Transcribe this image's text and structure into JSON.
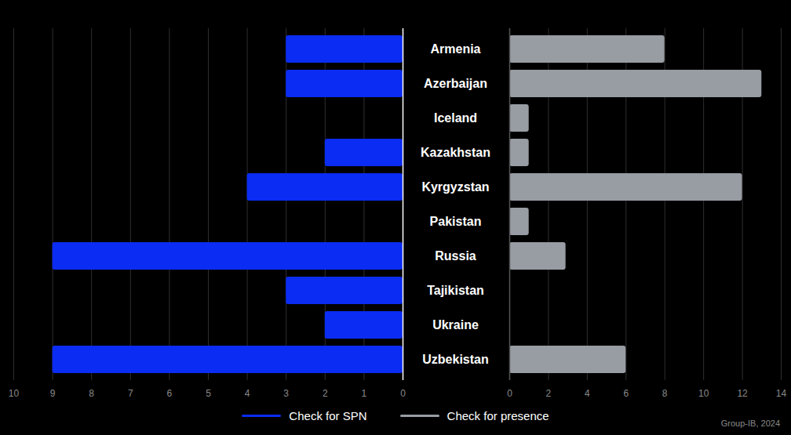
{
  "chart_data": [
    {
      "type": "bar",
      "orientation": "horizontal",
      "categories": [
        "Armenia",
        "Azerbaijan",
        "Iceland",
        "Kazakhstan",
        "Kyrgyzstan",
        "Pakistan",
        "Russia",
        "Tajikistan",
        "Ukraine",
        "Uzbekistan"
      ],
      "series": [
        {
          "name": "Check for SPN",
          "color": "#0b2cf2",
          "values": [
            3,
            3,
            0,
            2,
            4,
            0,
            9,
            3,
            2,
            9
          ]
        }
      ],
      "xlim": [
        10,
        0
      ],
      "xticks": [
        0,
        1,
        2,
        3,
        4,
        5,
        6,
        7,
        8,
        9,
        10
      ],
      "grid": true,
      "legend": "bottom"
    },
    {
      "type": "bar",
      "orientation": "horizontal",
      "categories": [
        "Armenia",
        "Azerbaijan",
        "Iceland",
        "Kazakhstan",
        "Kyrgyzstan",
        "Pakistan",
        "Russia",
        "Tajikistan",
        "Ukraine",
        "Uzbekistan"
      ],
      "series": [
        {
          "name": "Check for presence",
          "color": "#989ca3",
          "values": [
            8,
            13,
            1,
            1,
            12,
            1,
            2.9,
            0,
            0,
            6
          ]
        }
      ],
      "xlim": [
        0,
        14
      ],
      "xticks": [
        0,
        2,
        4,
        6,
        8,
        10,
        12,
        14
      ],
      "grid": true,
      "tick_labels": "x",
      "legend": "bottom",
      "caption": "Group-IB, 2024"
    }
  ]
}
